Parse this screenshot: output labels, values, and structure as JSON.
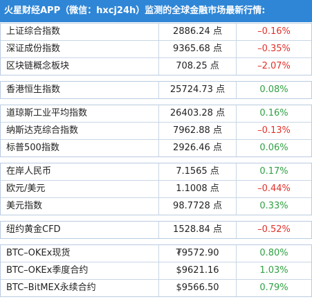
{
  "header": {
    "title": "火星财经APP（微信：hxcj24h）监测的全球金融市场最新行情:"
  },
  "groups": [
    [
      [
        "上证综合指数",
        "2886.24 点",
        "–0.16%"
      ],
      [
        "深证成份指数",
        "9365.68 点",
        "–0.35%"
      ],
      [
        "区块链概念板块",
        "708.25 点",
        "–2.07%"
      ]
    ],
    [
      [
        "香港恒生指数",
        "25724.73 点",
        "0.08%"
      ]
    ],
    [
      [
        "道琼斯工业平均指数",
        "26403.28 点",
        "0.16%"
      ],
      [
        "纳斯达克综合指数",
        "7962.88 点",
        "–0.13%"
      ],
      [
        "标普500指数",
        "2926.46 点",
        "0.06%"
      ]
    ],
    [
      [
        "在岸人民币",
        "7.1565 点",
        "0.17%"
      ],
      [
        "欧元/美元",
        "1.1008 点",
        "–0.44%"
      ],
      [
        "美元指数",
        "98.7728 点",
        "0.33%"
      ]
    ],
    [
      [
        "纽约黄金CFD",
        "1528.84 点",
        "–0.52%"
      ]
    ],
    [
      [
        "BTC–OKEx现货",
        "₮9572.90",
        "0.80%"
      ],
      [
        "BTC–OKEx季度合约",
        "$9621.16",
        "1.03%"
      ],
      [
        "BTC–BitMEX永续合约",
        "$9566.50",
        "0.79%"
      ]
    ]
  ]
}
